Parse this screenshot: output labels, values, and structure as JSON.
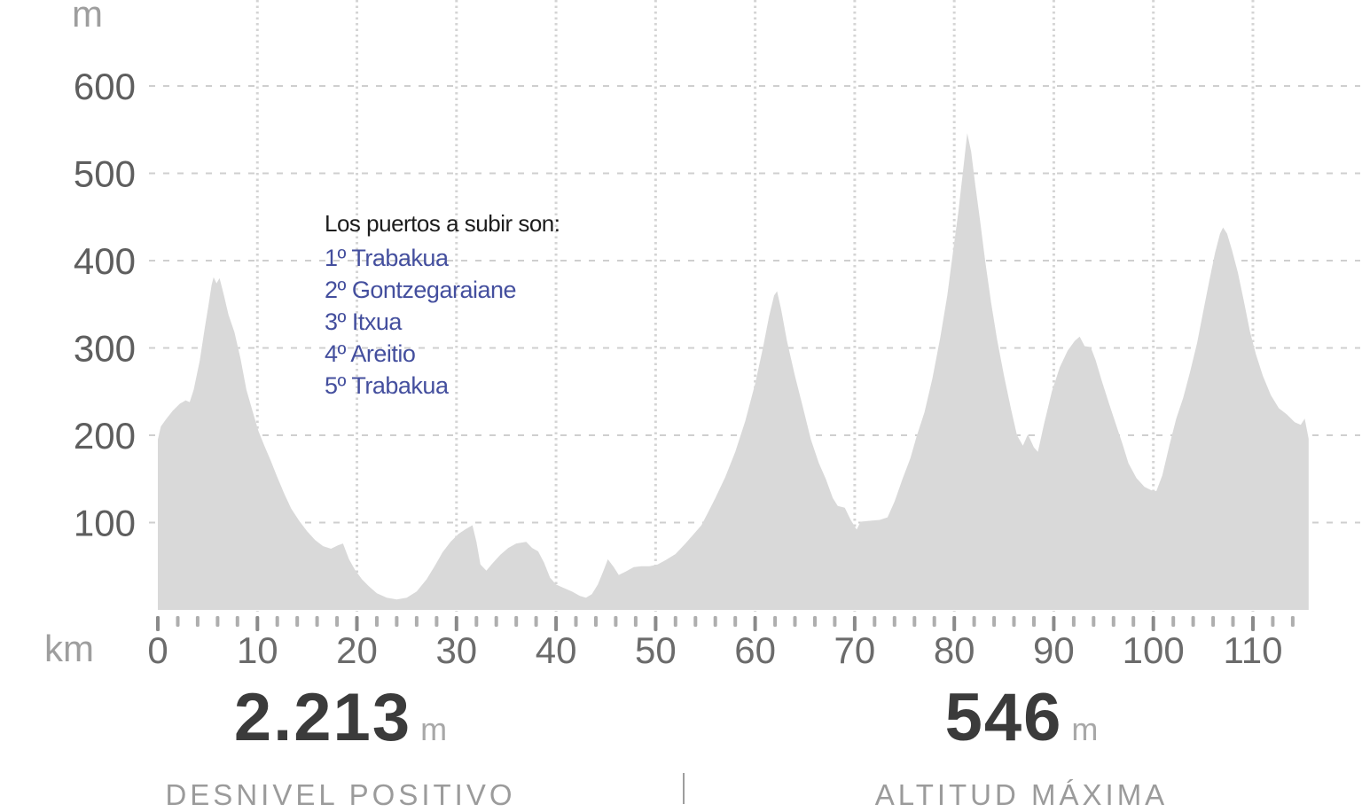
{
  "colors": {
    "area_fill": "#d9d9d9",
    "grid": "#cfcfcf",
    "grid_dotted": "#d4d4d4",
    "tick_major": "#8a8a8a",
    "tick_minor": "#aeaeae",
    "y_label": "#5e5e5e",
    "x_label": "#6b6b6b",
    "unit_label": "#9e9e9e",
    "annotation_title": "#1d1d1d",
    "annotation_item": "#444f9e",
    "stat_value": "#3b3b3b",
    "stat_unit": "#a8a8a8",
    "stat_label": "#9b9b9b",
    "divider": "#9e9e9e"
  },
  "annotation": {
    "title": "Los puertos a subir son:",
    "items": [
      "1º Trabakua",
      "2º Gontzegaraiane",
      "3º Itxua",
      "4º Areitio",
      "5º Trabakua"
    ]
  },
  "stats": [
    {
      "value": "2.213",
      "unit": "m",
      "label": "DESNIVEL POSITIVO"
    },
    {
      "value": "546",
      "unit": "m",
      "label": "ALTITUD MÁXIMA"
    }
  ],
  "chart_data": {
    "type": "area",
    "title": "",
    "xlabel": "km",
    "ylabel": "m",
    "x_unit_label": "km",
    "y_unit_label": "m",
    "grid": true,
    "legend_position": "none",
    "xlim": [
      0,
      120
    ],
    "ylim": [
      0,
      700
    ],
    "yticks": [
      600,
      500,
      400,
      300,
      200,
      100
    ],
    "xticks": [
      0,
      10,
      20,
      30,
      40,
      50,
      60,
      70,
      80,
      90,
      100,
      110
    ],
    "xgrid": [
      10,
      20,
      30,
      40,
      50,
      60,
      70,
      80,
      90,
      100,
      110
    ],
    "ruler": {
      "start": 0,
      "end": 114,
      "step": 2,
      "major": 10
    },
    "series": [
      {
        "name": "elevation-profile",
        "points": [
          [
            0,
            195
          ],
          [
            0.3,
            210
          ],
          [
            0.8,
            218
          ],
          [
            1.5,
            228
          ],
          [
            2.2,
            236
          ],
          [
            2.8,
            240
          ],
          [
            3.2,
            238
          ],
          [
            3.6,
            252
          ],
          [
            4.2,
            285
          ],
          [
            4.7,
            322
          ],
          [
            5.1,
            350
          ],
          [
            5.4,
            372
          ],
          [
            5.6,
            381
          ],
          [
            5.9,
            374
          ],
          [
            6.2,
            380
          ],
          [
            6.6,
            362
          ],
          [
            7.1,
            338
          ],
          [
            7.7,
            318
          ],
          [
            8.3,
            288
          ],
          [
            8.9,
            252
          ],
          [
            9.5,
            228
          ],
          [
            10.1,
            205
          ],
          [
            10.7,
            188
          ],
          [
            11.3,
            172
          ],
          [
            12,
            152
          ],
          [
            12.7,
            133
          ],
          [
            13.4,
            116
          ],
          [
            14.2,
            102
          ],
          [
            15,
            90
          ],
          [
            15.8,
            80
          ],
          [
            16.6,
            73
          ],
          [
            17.4,
            70
          ],
          [
            18.1,
            74
          ],
          [
            18.6,
            76
          ],
          [
            19.2,
            58
          ],
          [
            19.8,
            46
          ],
          [
            20.5,
            35
          ],
          [
            21.2,
            27
          ],
          [
            22,
            19
          ],
          [
            23,
            14
          ],
          [
            24,
            12
          ],
          [
            25,
            14
          ],
          [
            26,
            21
          ],
          [
            27,
            35
          ],
          [
            27.8,
            50
          ],
          [
            28.6,
            66
          ],
          [
            29.4,
            78
          ],
          [
            30.2,
            87
          ],
          [
            31,
            93
          ],
          [
            31.6,
            97
          ],
          [
            32,
            78
          ],
          [
            32.4,
            52
          ],
          [
            33,
            45
          ],
          [
            33.6,
            53
          ],
          [
            34.4,
            63
          ],
          [
            35.2,
            71
          ],
          [
            36,
            76
          ],
          [
            37,
            78
          ],
          [
            37.6,
            71
          ],
          [
            38.2,
            67
          ],
          [
            38.8,
            54
          ],
          [
            39.4,
            37
          ],
          [
            40,
            29
          ],
          [
            40.8,
            25
          ],
          [
            41.6,
            21
          ],
          [
            42.4,
            16
          ],
          [
            43,
            14
          ],
          [
            43.6,
            18
          ],
          [
            44.2,
            29
          ],
          [
            44.8,
            46
          ],
          [
            45.2,
            58
          ],
          [
            45.8,
            49
          ],
          [
            46.3,
            40
          ],
          [
            47,
            44
          ],
          [
            47.8,
            49
          ],
          [
            48.6,
            50
          ],
          [
            49.4,
            50
          ],
          [
            50.2,
            52
          ],
          [
            51,
            57
          ],
          [
            52,
            64
          ],
          [
            53,
            76
          ],
          [
            54,
            89
          ],
          [
            54.6,
            97
          ],
          [
            55.2,
            110
          ],
          [
            56,
            128
          ],
          [
            57,
            152
          ],
          [
            58,
            181
          ],
          [
            59,
            216
          ],
          [
            60,
            259
          ],
          [
            60.8,
            301
          ],
          [
            61.4,
            336
          ],
          [
            61.9,
            360
          ],
          [
            62.2,
            365
          ],
          [
            62.6,
            345
          ],
          [
            63.2,
            308
          ],
          [
            64,
            268
          ],
          [
            64.8,
            232
          ],
          [
            65.6,
            195
          ],
          [
            66.4,
            168
          ],
          [
            67.1,
            150
          ],
          [
            67.8,
            128
          ],
          [
            68.3,
            119
          ],
          [
            69,
            117
          ],
          [
            69.6,
            103
          ],
          [
            70.2,
            92
          ],
          [
            70.6,
            101
          ],
          [
            71.5,
            102
          ],
          [
            72.5,
            103
          ],
          [
            73.3,
            106
          ],
          [
            74,
            124
          ],
          [
            74.8,
            150
          ],
          [
            75.6,
            174
          ],
          [
            76.2,
            198
          ],
          [
            77,
            226
          ],
          [
            77.8,
            265
          ],
          [
            78.6,
            312
          ],
          [
            79.3,
            360
          ],
          [
            79.9,
            412
          ],
          [
            80.4,
            455
          ],
          [
            80.9,
            505
          ],
          [
            81.3,
            546
          ],
          [
            81.7,
            525
          ],
          [
            82.1,
            488
          ],
          [
            82.6,
            445
          ],
          [
            83.1,
            400
          ],
          [
            83.7,
            352
          ],
          [
            84.3,
            310
          ],
          [
            85,
            268
          ],
          [
            85.7,
            230
          ],
          [
            86.3,
            200
          ],
          [
            86.9,
            188
          ],
          [
            87.4,
            201
          ],
          [
            88,
            186
          ],
          [
            88.4,
            181
          ],
          [
            89,
            212
          ],
          [
            89.8,
            250
          ],
          [
            90.6,
            278
          ],
          [
            91.4,
            297
          ],
          [
            92.1,
            308
          ],
          [
            92.6,
            313
          ],
          [
            93.1,
            302
          ],
          [
            93.7,
            301
          ],
          [
            94.2,
            286
          ],
          [
            94.8,
            263
          ],
          [
            95.5,
            238
          ],
          [
            96.2,
            214
          ],
          [
            96.9,
            190
          ],
          [
            97.5,
            168
          ],
          [
            98.3,
            151
          ],
          [
            99.1,
            141
          ],
          [
            99.8,
            137
          ],
          [
            100.3,
            136
          ],
          [
            100.9,
            154
          ],
          [
            101.6,
            188
          ],
          [
            102.3,
            219
          ],
          [
            103,
            243
          ],
          [
            103.7,
            273
          ],
          [
            104.4,
            306
          ],
          [
            105,
            341
          ],
          [
            105.6,
            376
          ],
          [
            106.2,
            409
          ],
          [
            106.7,
            431
          ],
          [
            107,
            438
          ],
          [
            107.4,
            431
          ],
          [
            107.9,
            412
          ],
          [
            108.5,
            386
          ],
          [
            109.1,
            353
          ],
          [
            109.7,
            319
          ],
          [
            110.3,
            293
          ],
          [
            111,
            268
          ],
          [
            111.8,
            246
          ],
          [
            112.6,
            231
          ],
          [
            113.4,
            224
          ],
          [
            114.2,
            215
          ],
          [
            114.8,
            212
          ],
          [
            115.2,
            219
          ],
          [
            115.6,
            196
          ]
        ]
      }
    ]
  }
}
